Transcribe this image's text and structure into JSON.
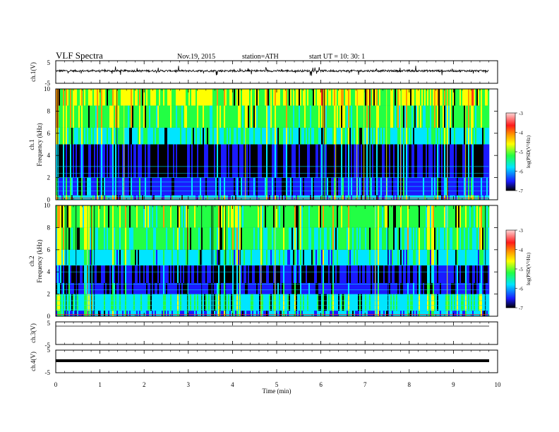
{
  "header": {
    "title": "VLF  Spectra",
    "date": "Nov.19, 2015",
    "station": "station=ATH",
    "start": "start  UT  =    10: 30: 1"
  },
  "chart_data": [
    {
      "type": "line",
      "panel": "ch1-waveform",
      "ylabel": "ch.1(V)",
      "y_ticks": [
        "5",
        "-5"
      ],
      "ylim": [
        -5,
        5
      ],
      "xlim": [
        0,
        10
      ],
      "series": [
        {
          "approx_level": 0.5
        }
      ]
    },
    {
      "type": "heatmap",
      "panel": "ch1-spectrogram",
      "ylabel_line1": "ch.1",
      "ylabel_line2": "Frequency  (kHz)",
      "y_ticks": [
        "0",
        "2",
        "4",
        "6",
        "8",
        "10"
      ],
      "ylim": [
        0,
        10
      ],
      "xlim": [
        0,
        10
      ],
      "colorbar": {
        "label": "log(PSD(V²/Hz)",
        "ticks": [
          "-3",
          "-4",
          "-5",
          "-6",
          "-7"
        ],
        "range": [
          -7,
          -3
        ],
        "colors": [
          "#000000",
          "#1a1aff",
          "#00e5ff",
          "#22ff44",
          "#ffff00",
          "#ff9900",
          "#ff1a1a",
          "#ffd6d6"
        ]
      }
    },
    {
      "type": "heatmap",
      "panel": "ch2-spectrogram",
      "ylabel_line1": "ch.2",
      "ylabel_line2": "Frequency  (kHz)",
      "y_ticks": [
        "0",
        "2",
        "4",
        "6",
        "8",
        "10"
      ],
      "ylim": [
        0,
        10
      ],
      "xlim": [
        0,
        10
      ],
      "colorbar": {
        "label": "log(PSD(V²/Hz)",
        "ticks": [
          "-3",
          "-4",
          "-5",
          "-6",
          "-7"
        ],
        "range": [
          -7,
          -3
        ]
      }
    },
    {
      "type": "line",
      "panel": "ch3-waveform",
      "ylabel": "ch.3(V)",
      "y_ticks": [
        "5",
        "-5"
      ],
      "ylim": [
        -5,
        5
      ],
      "series": [
        {
          "approx_level": 0
        }
      ]
    },
    {
      "type": "line",
      "panel": "ch4-waveform",
      "ylabel": "ch.4(V)",
      "y_ticks": [
        "5",
        "-5"
      ],
      "ylim": [
        -5,
        5
      ],
      "series": [
        {
          "approx_level": 0
        }
      ]
    }
  ],
  "x_axis": {
    "label": "Time  (min)",
    "ticks": [
      "0",
      "1",
      "2",
      "3",
      "4",
      "5",
      "6",
      "7",
      "8",
      "9",
      "10"
    ],
    "range": [
      0,
      10
    ]
  }
}
